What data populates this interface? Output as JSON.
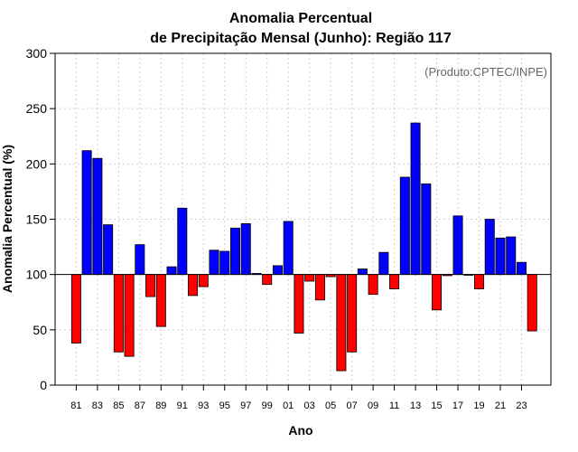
{
  "chart_data": {
    "type": "bar",
    "title_line1": "Anomalia Percentual",
    "title_line2": "de Precipitação Mensal (Junho): Região 117",
    "xlabel": "Ano",
    "ylabel": "Anomalia Percentual (%)",
    "credit": "(Produto:CPTEC/INPE)",
    "ylim": [
      0,
      300
    ],
    "yticks": [
      "0",
      "50",
      "100",
      "150",
      "200",
      "250",
      "300"
    ],
    "baseline": 100,
    "positive_color": "#0000ff",
    "negative_color": "#ff0000",
    "categories": [
      "81",
      "82",
      "83",
      "84",
      "85",
      "86",
      "87",
      "88",
      "89",
      "90",
      "91",
      "92",
      "93",
      "94",
      "95",
      "96",
      "97",
      "98",
      "99",
      "00",
      "01",
      "02",
      "03",
      "04",
      "05",
      "06",
      "07",
      "08",
      "09",
      "10",
      "11",
      "12",
      "13",
      "14",
      "15",
      "16",
      "17",
      "18",
      "19",
      "20",
      "21",
      "22",
      "23",
      "24"
    ],
    "values": [
      38,
      212,
      205,
      145,
      30,
      26,
      127,
      80,
      53,
      107,
      160,
      81,
      89,
      122,
      121,
      142,
      146,
      101,
      91,
      108,
      148,
      47,
      94,
      77,
      98,
      13,
      30,
      105,
      82,
      120,
      87,
      188,
      237,
      182,
      68,
      99,
      153,
      100,
      87,
      150,
      133,
      134,
      111,
      49
    ],
    "xtick_labels": [
      "81",
      "83",
      "85",
      "87",
      "89",
      "91",
      "93",
      "95",
      "97",
      "99",
      "01",
      "03",
      "05",
      "07",
      "09",
      "11",
      "13",
      "15",
      "17",
      "19",
      "21",
      "23"
    ]
  }
}
